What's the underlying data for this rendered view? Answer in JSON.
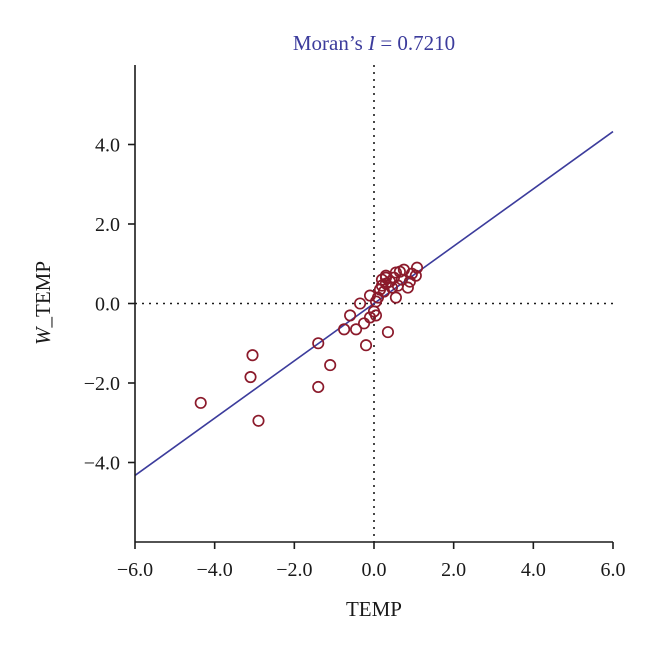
{
  "chart_data": {
    "type": "scatter",
    "title_prefix": "Moran’s ",
    "title_italic": "I",
    "title_suffix": " = 0.7210",
    "xlabel": "TEMP",
    "ylabel_italic": "W",
    "ylabel_rest": "_TEMP",
    "xlim": [
      -6.0,
      6.0
    ],
    "ylim": [
      -6.0,
      6.0
    ],
    "xticks": [
      "−6.0",
      "−4.0",
      "−2.0",
      "0.0",
      "2.0",
      "4.0",
      "6.0"
    ],
    "xtick_values": [
      -6,
      -4,
      -2,
      0,
      2,
      4,
      6
    ],
    "yticks": [
      "−4.0",
      "−2.0",
      "0.0",
      "2.0",
      "4.0"
    ],
    "ytick_values": [
      -4,
      -2,
      0,
      2,
      4
    ],
    "regression": {
      "slope": 0.721,
      "intercept": 0.0
    },
    "grid": false,
    "colors": {
      "points": "#8b1a2b",
      "line": "#3c3c9c",
      "title": "#3c3c9c",
      "axis": "#1a1a1a"
    },
    "points": [
      [
        -4.35,
        -2.5
      ],
      [
        -3.05,
        -1.3
      ],
      [
        -3.1,
        -1.85
      ],
      [
        -2.9,
        -2.95
      ],
      [
        -1.4,
        -1.0
      ],
      [
        -1.4,
        -2.1
      ],
      [
        -1.1,
        -1.55
      ],
      [
        -0.75,
        -0.65
      ],
      [
        -0.6,
        -0.3
      ],
      [
        -0.45,
        -0.65
      ],
      [
        -0.35,
        0.0
      ],
      [
        -0.25,
        -0.5
      ],
      [
        -0.2,
        -1.05
      ],
      [
        -0.1,
        -0.35
      ],
      [
        -0.1,
        0.2
      ],
      [
        0.0,
        -0.2
      ],
      [
        0.05,
        -0.3
      ],
      [
        0.05,
        0.05
      ],
      [
        0.1,
        0.15
      ],
      [
        0.15,
        0.35
      ],
      [
        0.2,
        0.45
      ],
      [
        0.25,
        0.3
      ],
      [
        0.3,
        0.5
      ],
      [
        0.3,
        0.65
      ],
      [
        0.3,
        0.7
      ],
      [
        0.35,
        -0.72
      ],
      [
        0.4,
        0.55
      ],
      [
        0.45,
        0.4
      ],
      [
        0.5,
        0.65
      ],
      [
        0.55,
        0.15
      ],
      [
        0.6,
        0.45
      ],
      [
        0.65,
        0.8
      ],
      [
        0.7,
        0.6
      ],
      [
        0.75,
        0.85
      ],
      [
        0.85,
        0.4
      ],
      [
        0.9,
        0.55
      ],
      [
        0.95,
        0.75
      ],
      [
        1.05,
        0.7
      ],
      [
        1.08,
        0.9
      ],
      [
        0.55,
        0.78
      ],
      [
        0.2,
        0.6
      ]
    ]
  }
}
